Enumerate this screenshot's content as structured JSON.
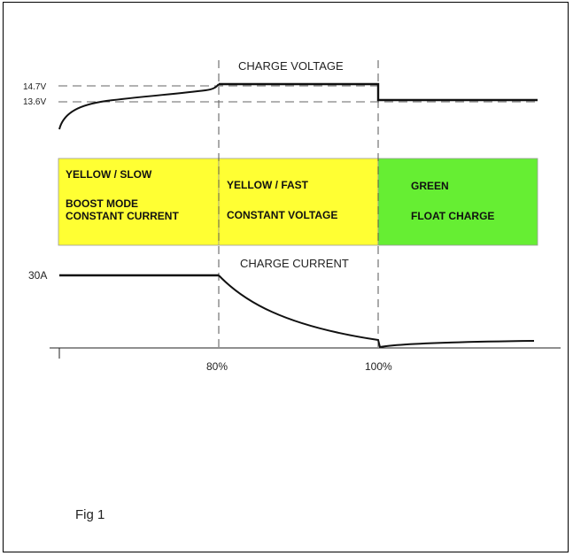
{
  "voltage": {
    "title": "CHARGE VOLTAGE",
    "high_label": "14.7V",
    "low_label": "13.6V"
  },
  "current": {
    "title": "CHARGE CURRENT",
    "level_label": "30A"
  },
  "stages": [
    {
      "line1": "YELLOW / SLOW",
      "line2": "BOOST MODE",
      "line3": "CONSTANT CURRENT",
      "color": "#ffff33"
    },
    {
      "line1": "YELLOW / FAST",
      "line2": "CONSTANT VOLTAGE",
      "color": "#ffff33"
    },
    {
      "line1": "GREEN",
      "line2": "FLOAT CHARGE",
      "color": "#66ee33"
    }
  ],
  "x_ticks": [
    "80%",
    "100%"
  ],
  "caption": "Fig 1"
}
